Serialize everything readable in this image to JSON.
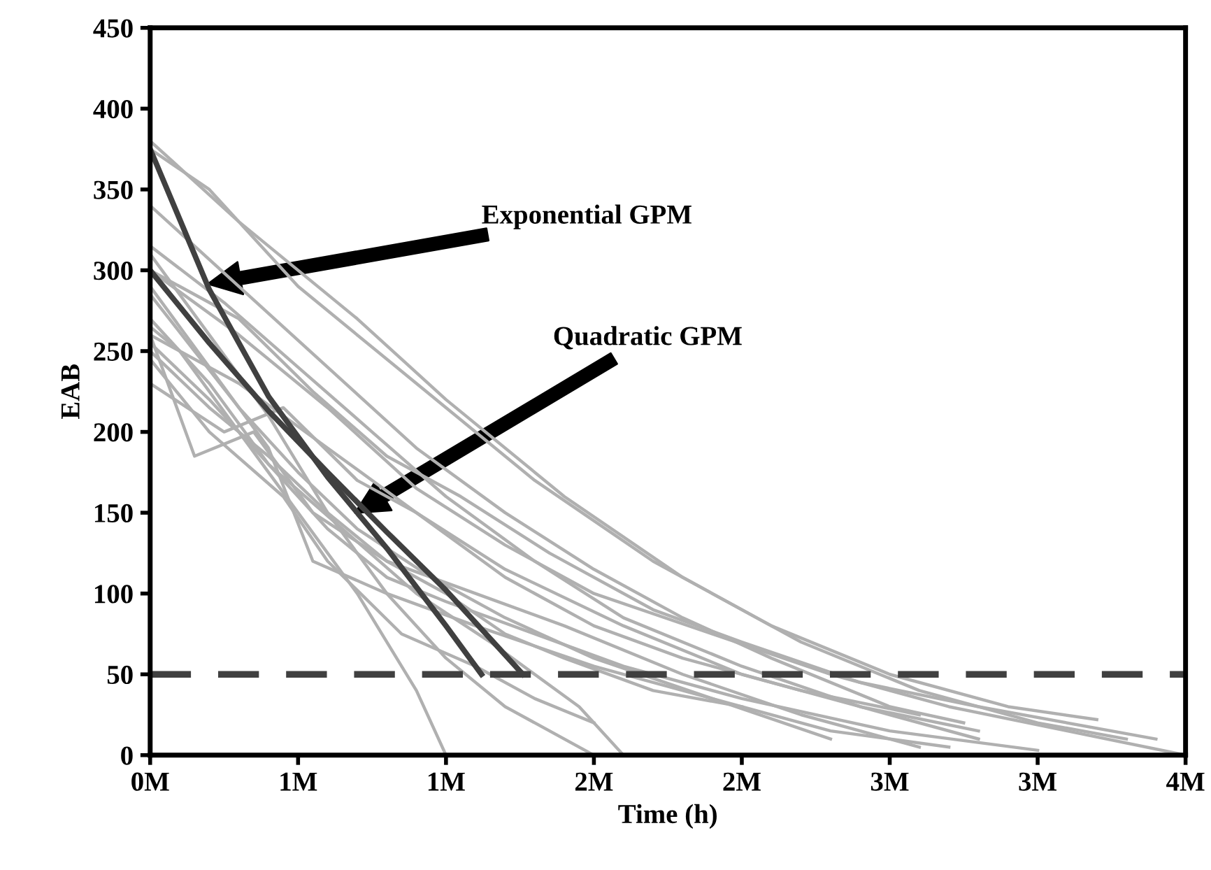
{
  "chart_data": {
    "type": "line",
    "xlabel": "Time (h)",
    "ylabel": "EAB",
    "xlim": [
      0,
      3500000.0
    ],
    "ylim": [
      0,
      450
    ],
    "xticks": [
      {
        "value": 0,
        "label": "0M"
      },
      {
        "value": 500000.0,
        "label": "1M"
      },
      {
        "value": 1000000.0,
        "label": "1M"
      },
      {
        "value": 1500000.0,
        "label": "2M"
      },
      {
        "value": 2000000.0,
        "label": "2M"
      },
      {
        "value": 2500000.0,
        "label": "3M"
      },
      {
        "value": 3000000.0,
        "label": "3M"
      },
      {
        "value": 3500000.0,
        "label": "4M"
      }
    ],
    "yticks": [
      0,
      50,
      100,
      150,
      200,
      250,
      300,
      350,
      400,
      450
    ],
    "grid": false,
    "legend": false,
    "marker": "none",
    "ref_lines": [
      {
        "axis": "y",
        "value": 50,
        "color": "#404040",
        "line_style": "dashed"
      }
    ],
    "annotations": [
      "Exponential GPM",
      "Quadratic GPM"
    ],
    "series": [
      {
        "color": "#b0b0b0",
        "x": [
          0,
          300000.0,
          700000.0,
          1000000.0,
          1400000.0,
          1800000.0,
          2200000.0,
          2600000.0,
          3000000.0,
          3300000.0
        ],
        "values": [
          380,
          330,
          270,
          220,
          160,
          110,
          70,
          40,
          20,
          10
        ]
      },
      {
        "color": "#b0b0b0",
        "x": [
          0,
          200000.0,
          500000.0,
          900000.0,
          1300000.0,
          1700000.0,
          2100000.0,
          2500000.0,
          2900000.0,
          3200000.0
        ],
        "values": [
          375,
          350,
          290,
          230,
          170,
          120,
          80,
          50,
          30,
          22
        ]
      },
      {
        "color": "#b0b0b0",
        "x": [
          0,
          250000.0,
          500000.0,
          750000.0,
          1000000.0,
          1300000.0,
          1600000.0,
          2000000.0,
          2400000.0,
          2800000.0
        ],
        "values": [
          315,
          280,
          240,
          200,
          160,
          120,
          85,
          55,
          30,
          15
        ]
      },
      {
        "color": "#b0b0b0",
        "x": [
          0,
          200000.0,
          400000.0,
          600000.0,
          800000.0,
          1000000.0,
          1200000.0,
          1500000.0
        ],
        "values": [
          310,
          260,
          210,
          150,
          100,
          60,
          30,
          0
        ]
      },
      {
        "color": "#b0b0b0",
        "x": [
          0,
          100000.0,
          300000.0,
          500000.0,
          700000.0,
          900000.0,
          1000000.0
        ],
        "values": [
          265,
          250,
          200,
          150,
          100,
          40,
          0
        ]
      },
      {
        "color": "#b0b0b0",
        "x": [
          0,
          150000.0,
          350000.0,
          550000.0,
          800000.0,
          1100000.0,
          1400000.0,
          1800000.0,
          2200000.0,
          2600000.0
        ],
        "values": [
          260,
          185,
          200,
          150,
          120,
          100,
          80,
          50,
          25,
          5
        ]
      },
      {
        "color": "#b0b0b0",
        "x": [
          0,
          200000.0,
          400000.0,
          600000.0,
          800000.0,
          1000000.0,
          1300000.0,
          1600000.0,
          2000000.0,
          2500000.0,
          3000000.0
        ],
        "values": [
          255,
          220,
          180,
          140,
          110,
          95,
          75,
          55,
          35,
          15,
          3
        ]
      },
      {
        "color": "#b0b0b0",
        "x": [
          0,
          300000.0,
          600000.0,
          900000.0,
          1200000.0,
          1500000.0,
          1900000.0,
          2300000.0,
          2700000.0,
          3100000.0,
          3500000.0
        ],
        "values": [
          300,
          260,
          215,
          165,
          130,
          100,
          75,
          50,
          30,
          15,
          0
        ]
      },
      {
        "color": "#b0b0b0",
        "x": [
          0,
          200000.0,
          400000.0,
          550000.0,
          800000.0,
          1100000.0,
          1500000.0,
          1900000.0,
          2300000.0,
          2700000.0
        ],
        "values": [
          290,
          240,
          190,
          120,
          100,
          80,
          55,
          35,
          15,
          5
        ]
      },
      {
        "color": "#b0b0b0",
        "x": [
          0,
          300000.0,
          600000.0,
          900000.0,
          1200000.0,
          1600000.0,
          2000000.0,
          2400000.0,
          2800000.0
        ],
        "values": [
          260,
          230,
          190,
          150,
          115,
          80,
          50,
          30,
          10
        ]
      },
      {
        "color": "#b0b0b0",
        "x": [
          0,
          200000.0,
          450000.0,
          600000.0,
          850000.0,
          1100000.0,
          1300000.0,
          1500000.0
        ],
        "values": [
          245,
          200,
          160,
          120,
          75,
          55,
          35,
          20
        ]
      },
      {
        "color": "#b0b0b0",
        "x": [
          0,
          300000.0,
          600000.0,
          900000.0,
          1200000.0,
          1500000.0,
          1800000.0,
          2100000.0,
          2500000.0,
          2750000.0
        ],
        "values": [
          340,
          290,
          240,
          190,
          150,
          115,
          85,
          60,
          30,
          20
        ]
      },
      {
        "color": "#b0b0b0",
        "x": [
          0,
          200000.0,
          400000.0,
          600000.0,
          800000.0,
          1000000.0,
          1200000.0,
          1400000.0,
          1700000.0,
          2000000.0
        ],
        "values": [
          250,
          215,
          185,
          150,
          120,
          100,
          75,
          60,
          40,
          30
        ]
      },
      {
        "color": "#b0b0b0",
        "x": [
          0,
          150000.0,
          300000.0,
          500000.0,
          700000.0,
          950000.0,
          1200000.0,
          1500000.0,
          1900000.0,
          2300000.0
        ],
        "values": [
          285,
          250,
          215,
          175,
          140,
          110,
          85,
          60,
          35,
          10
        ]
      },
      {
        "color": "#b0b0b0",
        "x": [
          0,
          250000.0,
          450000.0,
          700000.0,
          900000.0,
          1200000.0,
          1500000.0,
          1800000.0,
          2200000.0,
          2600000.0
        ],
        "values": [
          230,
          200,
          215,
          170,
          150,
          110,
          80,
          60,
          40,
          25
        ]
      },
      {
        "color": "#b0b0b0",
        "x": [
          0,
          300000.0,
          550000.0,
          800000.0,
          1050000.0,
          1350000.0,
          1700000.0,
          2000000.0,
          2400000.0,
          2800000.0,
          3400000.0
        ],
        "values": [
          300,
          270,
          225,
          185,
          160,
          125,
          90,
          70,
          45,
          30,
          10
        ]
      },
      {
        "color": "#b0b0b0",
        "x": [
          0,
          200000.0,
          400000.0,
          650000.0,
          900000.0,
          1150000.0,
          1450000.0,
          1600000.0
        ],
        "values": [
          270,
          230,
          180,
          140,
          100,
          70,
          30,
          0
        ]
      },
      {
        "color": "#404040",
        "x": [
          0,
          200000.0,
          400000.0,
          600000.0,
          800000.0,
          1000000.0,
          1120000.0
        ],
        "values": [
          375,
          288,
          222,
          172,
          128,
          80,
          50
        ]
      },
      {
        "color": "#404040",
        "x": [
          0,
          200000.0,
          400000.0,
          600000.0,
          800000.0,
          1000000.0,
          1150000.0,
          1260000.0
        ],
        "values": [
          300,
          255,
          213,
          175,
          138,
          102,
          72,
          50
        ]
      }
    ]
  }
}
